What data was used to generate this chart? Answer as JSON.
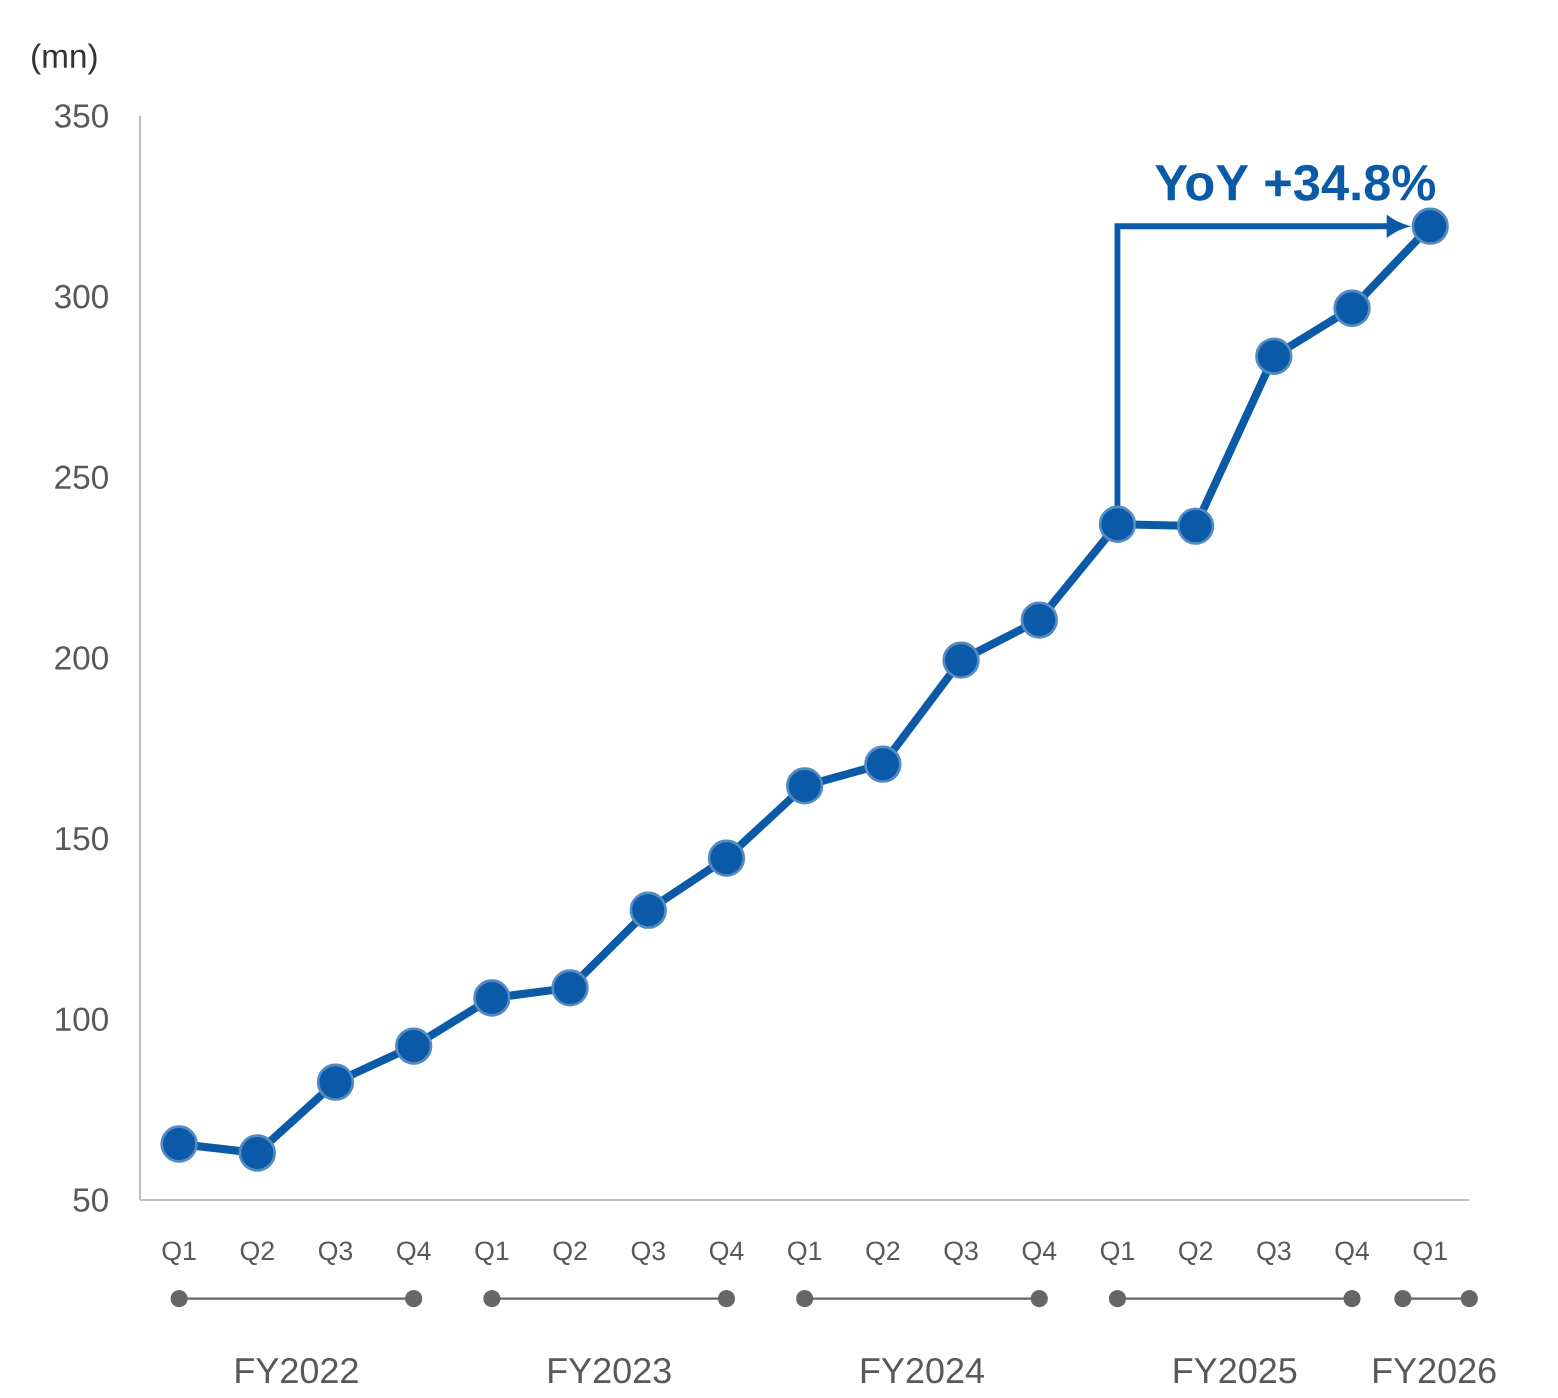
{
  "chart_data": {
    "type": "line",
    "ylabel": "(mn)",
    "categories": [
      "Q1",
      "Q2",
      "Q3",
      "Q4",
      "Q1",
      "Q2",
      "Q3",
      "Q4",
      "Q1",
      "Q2",
      "Q3",
      "Q4",
      "Q1",
      "Q2",
      "Q3",
      "Q4",
      "Q1"
    ],
    "values": [
      65.5,
      63,
      82.6,
      92.6,
      105.9,
      108.7,
      130.2,
      144.6,
      164.6,
      170.6,
      199.4,
      210.5,
      237,
      236.5,
      283.5,
      296.8,
      319.5
    ],
    "color": "#0b5aa8",
    "marker": "circle",
    "ylim": [
      50,
      350
    ],
    "yticks": [
      50,
      100,
      150,
      200,
      250,
      300,
      350
    ],
    "annotations": [
      "YoY +34.8%",
      "FY2022",
      "FY2023",
      "FY2024",
      "FY2025",
      "FY2026"
    ]
  }
}
